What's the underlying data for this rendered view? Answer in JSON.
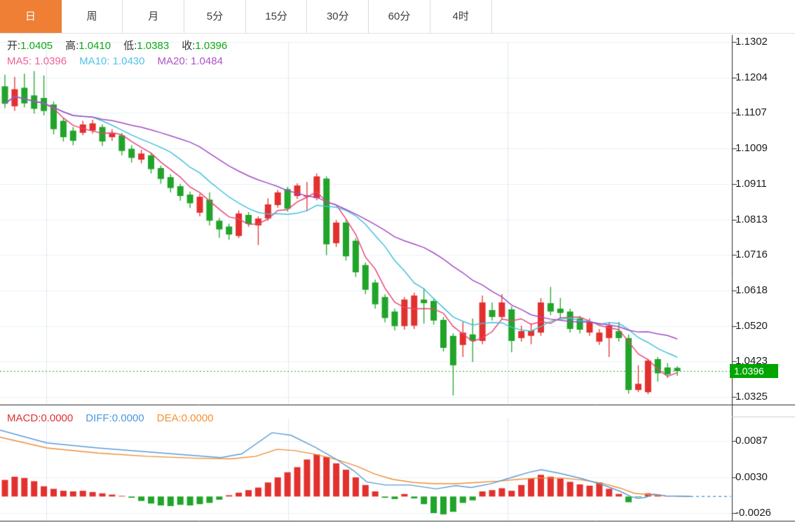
{
  "tabbar": {
    "tabs": [
      {
        "label": "日",
        "active": true
      },
      {
        "label": "周",
        "active": false
      },
      {
        "label": "月",
        "active": false
      },
      {
        "label": "5分",
        "active": false
      },
      {
        "label": "15分",
        "active": false
      },
      {
        "label": "30分",
        "active": false
      },
      {
        "label": "60分",
        "active": false
      },
      {
        "label": "4时",
        "active": false
      }
    ]
  },
  "overlay": {
    "ohlc": {
      "open_label": "开:",
      "open": "1.0405",
      "high_label": "高:",
      "high": "1.0410",
      "low_label": "低:",
      "low": "1.0383",
      "close_label": "收:",
      "close": "1.0396"
    },
    "ma": {
      "ma5_label": "MA5:",
      "ma5": "1.0396",
      "ma10_label": "MA10:",
      "ma10": "1.0430",
      "ma20_label": "MA20:",
      "ma20": "1.0484"
    },
    "macd": {
      "macd_label": "MACD:",
      "macd": "0.0000",
      "diff_label": "DIFF:",
      "diff": "0.0000",
      "dea_label": "DEA:",
      "dea": "0.0000"
    }
  },
  "price_badge": {
    "value": "1.0396"
  },
  "colors": {
    "up": "#e2302e",
    "down": "#21a42a",
    "ma5_line": "#e8447a",
    "ma10_line": "#41c0dc",
    "ma20_line": "#a44bc4",
    "diff_line": "#5a9bd8",
    "dea_line": "#ef8d35",
    "grid_h": "#eaf0f6",
    "grid_v": "#dfe9f2",
    "frame": "#2b2b2b",
    "dotted_price_line": "#2ea02e",
    "badge_bg": "#00a500",
    "tab_active_bg": "#ee7f35"
  },
  "chart_data": {
    "type": "candlestick+macd",
    "title": "",
    "legend": [
      "MA5",
      "MA10",
      "MA20",
      "MACD",
      "DIFF",
      "DEA"
    ],
    "price_axis": {
      "position": "right",
      "ticks": [
        "1.1302",
        "1.1204",
        "1.1107",
        "1.1009",
        "1.0911",
        "1.0813",
        "1.0716",
        "1.0618",
        "1.0520",
        "1.0423",
        "1.0325"
      ],
      "ylim": [
        1.0325,
        1.1302
      ],
      "grid": true
    },
    "macd_axis": {
      "position": "right",
      "ticks": [
        "0.0087",
        "0.0030",
        "-0.0026"
      ],
      "ylim": [
        -0.0039,
        0.0126
      ],
      "grid": true
    },
    "current_price": 1.0396,
    "latest": {
      "open": 1.0405,
      "high": 1.041,
      "low": 1.0383,
      "close": 1.0396,
      "ma5": 1.0396,
      "ma10": 1.043,
      "ma20": 1.0484,
      "macd": 0.0,
      "diff": 0.0,
      "dea": 0.0
    },
    "vertical_gridlines_x": [
      66,
      411,
      724
    ],
    "ma_periods": [
      5,
      10,
      20
    ],
    "candles": [
      [
        1.118,
        1.1212,
        1.112,
        1.1132
      ],
      [
        1.1125,
        1.1206,
        1.1112,
        1.1172
      ],
      [
        1.1176,
        1.1215,
        1.1122,
        1.1133
      ],
      [
        1.1155,
        1.1222,
        1.1105,
        1.1118
      ],
      [
        1.1148,
        1.121,
        1.11,
        1.1112
      ],
      [
        1.113,
        1.1138,
        1.1048,
        1.1062
      ],
      [
        1.1085,
        1.1093,
        1.1028,
        1.104
      ],
      [
        1.1058,
        1.1068,
        1.1018,
        1.103
      ],
      [
        1.1052,
        1.1085,
        1.1045,
        1.1075
      ],
      [
        1.1058,
        1.1088,
        1.105,
        1.1078
      ],
      [
        1.1068,
        1.1075,
        1.1016,
        1.1028
      ],
      [
        1.104,
        1.1062,
        1.103,
        1.105
      ],
      [
        1.1045,
        1.1052,
        1.099,
        1.1002
      ],
      [
        1.1008,
        1.1018,
        1.097,
        1.0983
      ],
      [
        1.0978,
        1.1005,
        1.0968,
        1.0995
      ],
      [
        1.099,
        1.0997,
        1.094,
        1.0952
      ],
      [
        1.0955,
        1.0962,
        1.0912,
        1.0925
      ],
      [
        1.093,
        1.0938,
        1.0888,
        1.09
      ],
      [
        1.0905,
        1.0912,
        1.0865,
        1.0878
      ],
      [
        1.0882,
        1.089,
        1.0845,
        1.0858
      ],
      [
        1.0832,
        1.0884,
        1.0822,
        1.0876
      ],
      [
        1.0868,
        1.0888,
        1.0797,
        1.081
      ],
      [
        1.081,
        1.0818,
        1.0763,
        1.0786
      ],
      [
        1.0794,
        1.0802,
        1.0757,
        1.0772
      ],
      [
        1.0768,
        1.0838,
        1.0762,
        1.083
      ],
      [
        1.0826,
        1.0834,
        1.0793,
        1.0801
      ],
      [
        1.0797,
        1.0822,
        1.0743,
        1.0816
      ],
      [
        1.0816,
        1.0872,
        1.081,
        1.0855
      ],
      [
        1.0853,
        1.0895,
        1.0846,
        1.0888
      ],
      [
        1.0897,
        1.0903,
        1.0835,
        1.0843
      ],
      [
        1.0878,
        1.0913,
        1.087,
        1.0907
      ],
      [
        1.0876,
        1.0917,
        1.0836,
        1.088
      ],
      [
        1.0872,
        1.094,
        1.0866,
        1.0932
      ],
      [
        1.0926,
        1.0932,
        1.0715,
        1.0745
      ],
      [
        1.0748,
        1.0812,
        1.0738,
        1.0805
      ],
      [
        1.0805,
        1.0812,
        1.07,
        1.0712
      ],
      [
        1.0755,
        1.0762,
        1.0655,
        1.0668
      ],
      [
        1.0688,
        1.0695,
        1.0608,
        1.062
      ],
      [
        1.064,
        1.0648,
        1.0568,
        1.058
      ],
      [
        1.06,
        1.0608,
        1.053,
        1.0542
      ],
      [
        1.056,
        1.0568,
        1.0508,
        1.052
      ],
      [
        1.052,
        1.06,
        1.051,
        1.0593
      ],
      [
        1.0521,
        1.0612,
        1.0512,
        1.0604
      ],
      [
        1.0593,
        1.0624,
        1.0527,
        1.0583
      ],
      [
        1.0589,
        1.0597,
        1.0524,
        1.0535
      ],
      [
        1.0537,
        1.0545,
        1.045,
        1.046
      ],
      [
        1.0493,
        1.05,
        1.0329,
        1.0412
      ],
      [
        1.0468,
        1.0531,
        1.0435,
        1.0502
      ],
      [
        1.0497,
        1.0541,
        1.0421,
        1.0479
      ],
      [
        1.0479,
        1.0604,
        1.047,
        1.0585
      ],
      [
        1.0564,
        1.0585,
        1.0535,
        1.0545
      ],
      [
        1.0545,
        1.0608,
        1.0538,
        1.0585
      ],
      [
        1.0566,
        1.0574,
        1.0448,
        1.0479
      ],
      [
        1.0487,
        1.0521,
        1.0477,
        1.0506
      ],
      [
        1.0493,
        1.0527,
        1.047,
        1.0508
      ],
      [
        1.0502,
        1.0597,
        1.0493,
        1.0585
      ],
      [
        1.0583,
        1.0628,
        1.055,
        1.056
      ],
      [
        1.0568,
        1.0597,
        1.0541,
        1.0556
      ],
      [
        1.056,
        1.0568,
        1.0502,
        1.0512
      ],
      [
        1.0541,
        1.0548,
        1.05,
        1.051
      ],
      [
        1.0502,
        1.0541,
        1.0493,
        1.0531
      ],
      [
        1.0477,
        1.0512,
        1.0468,
        1.0502
      ],
      [
        1.0487,
        1.0531,
        1.0435,
        1.0521
      ],
      [
        1.0506,
        1.0531,
        1.0477,
        1.0487
      ],
      [
        1.0487,
        1.0497,
        1.0334,
        1.0344
      ],
      [
        1.0344,
        1.0412,
        1.0338,
        1.0361
      ],
      [
        1.0338,
        1.043,
        1.0332,
        1.0425
      ],
      [
        1.0429,
        1.0435,
        1.0367,
        1.039
      ],
      [
        1.0406,
        1.0418,
        1.0377,
        1.0387
      ],
      [
        1.0405,
        1.041,
        1.0383,
        1.0396
      ]
    ],
    "macd": {
      "histogram": [
        0.0026,
        0.0031,
        0.0029,
        0.0024,
        0.0016,
        0.0012,
        0.0009,
        0.0008,
        0.0009,
        0.0007,
        0.0005,
        0.0003,
        0.0001,
        -0.0002,
        -0.0007,
        -0.0011,
        -0.0014,
        -0.0015,
        -0.0013,
        -0.0014,
        -0.0012,
        -0.001,
        -0.0005,
        0.0002,
        0.0006,
        0.001,
        0.0014,
        0.0022,
        0.003,
        0.0038,
        0.0046,
        0.0058,
        0.0066,
        0.0062,
        0.0052,
        0.0042,
        0.003,
        0.0018,
        0.0008,
        -0.0002,
        -0.0004,
        0.0004,
        -0.0003,
        -0.0012,
        -0.0026,
        -0.0028,
        -0.0024,
        -0.001,
        -0.0006,
        0.0008,
        0.001,
        0.0013,
        0.0009,
        0.0018,
        0.0028,
        0.0034,
        0.0031,
        0.0028,
        0.0023,
        0.0019,
        0.0017,
        0.0022,
        0.0012,
        0.0004,
        -0.0009,
        -0.0001,
        0.0005,
        0.0003,
        0.0001,
        0.0
      ],
      "diff": [
        [
          0,
          0.0104
        ],
        [
          67,
          0.0084
        ],
        [
          140,
          0.0076
        ],
        [
          210,
          0.007
        ],
        [
          280,
          0.0064
        ],
        [
          315,
          0.0061
        ],
        [
          345,
          0.0067
        ],
        [
          388,
          0.01
        ],
        [
          415,
          0.0096
        ],
        [
          450,
          0.0077
        ],
        [
          480,
          0.0058
        ],
        [
          505,
          0.004
        ],
        [
          523,
          0.0023
        ],
        [
          550,
          0.0018
        ],
        [
          585,
          0.0018
        ],
        [
          622,
          0.0012
        ],
        [
          650,
          0.0017
        ],
        [
          672,
          0.0014
        ],
        [
          700,
          0.002
        ],
        [
          730,
          0.003
        ],
        [
          755,
          0.0038
        ],
        [
          772,
          0.0042
        ],
        [
          800,
          0.0036
        ],
        [
          830,
          0.0028
        ],
        [
          858,
          0.0019
        ],
        [
          885,
          0.0008
        ],
        [
          900,
          0.0
        ],
        [
          910,
          -0.0003
        ],
        [
          922,
          -0.0001
        ],
        [
          932,
          0.0004
        ],
        [
          950,
          0.0001
        ],
        [
          985,
          0.0
        ]
      ],
      "dea": [
        [
          0,
          0.0093
        ],
        [
          67,
          0.0076
        ],
        [
          140,
          0.0068
        ],
        [
          210,
          0.0063
        ],
        [
          280,
          0.006
        ],
        [
          330,
          0.0059
        ],
        [
          365,
          0.0063
        ],
        [
          395,
          0.0074
        ],
        [
          420,
          0.0072
        ],
        [
          450,
          0.0066
        ],
        [
          480,
          0.0058
        ],
        [
          510,
          0.0047
        ],
        [
          535,
          0.0035
        ],
        [
          560,
          0.0027
        ],
        [
          590,
          0.0022
        ],
        [
          620,
          0.002
        ],
        [
          650,
          0.002
        ],
        [
          680,
          0.0022
        ],
        [
          710,
          0.0024
        ],
        [
          740,
          0.0027
        ],
        [
          770,
          0.0029
        ],
        [
          800,
          0.0029
        ],
        [
          830,
          0.0026
        ],
        [
          858,
          0.0021
        ],
        [
          885,
          0.0013
        ],
        [
          905,
          0.0005
        ],
        [
          925,
          0.0003
        ],
        [
          950,
          0.0001
        ],
        [
          985,
          0.0
        ]
      ],
      "zero_dash_from_x": 985
    }
  }
}
